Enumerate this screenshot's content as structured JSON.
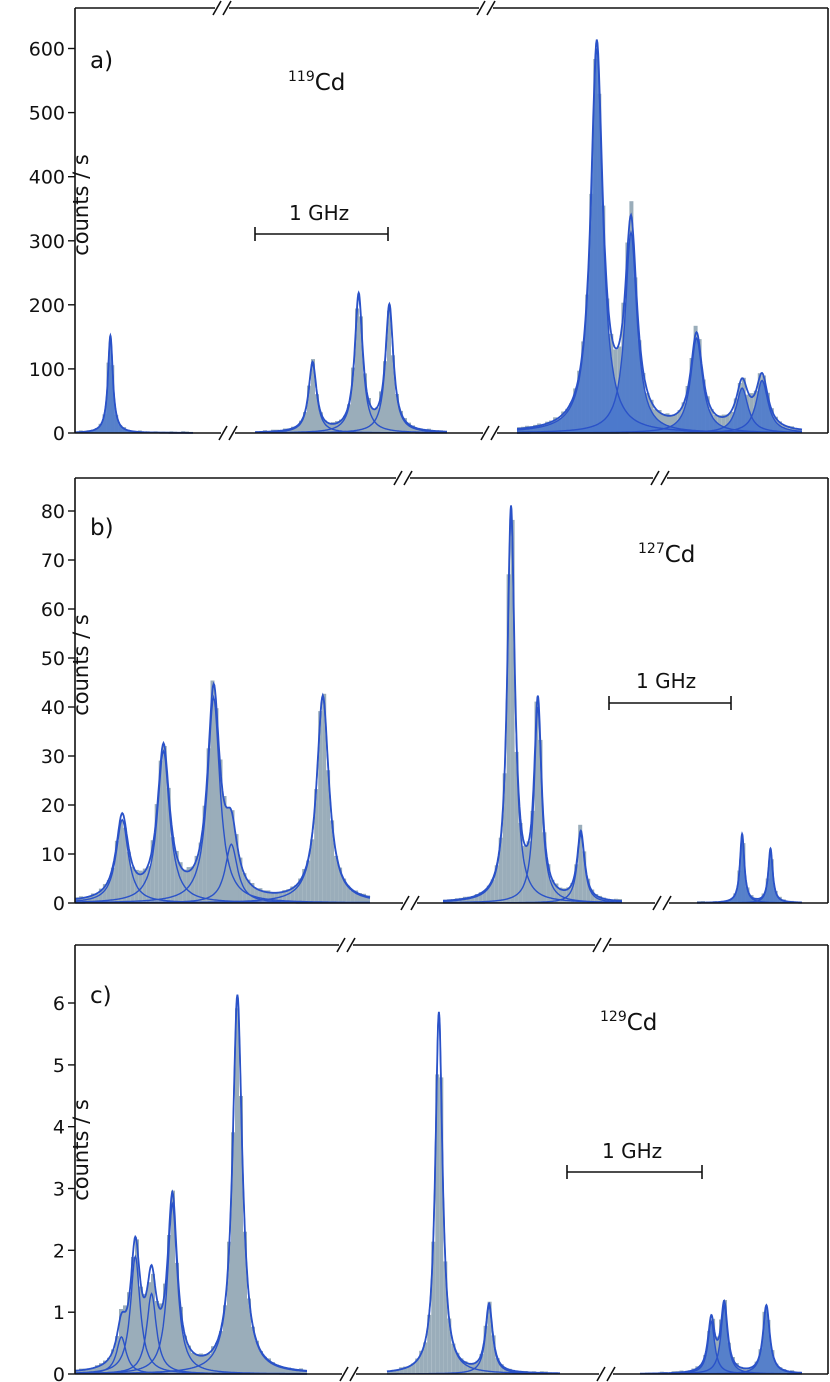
{
  "colors": {
    "fit_line": "#2a52c8",
    "fit_fill": "#4a78cc",
    "data_bar": "#8fa4b2",
    "axis": "#111111"
  },
  "chart_data": [
    {
      "type": "line",
      "panel_label": "a)",
      "isotope": {
        "mass": "119",
        "element": "Cd"
      },
      "ylabel": "counts / s",
      "ylim": [
        0,
        650
      ],
      "yticks": [
        0,
        100,
        200,
        300,
        400,
        500,
        600
      ],
      "scale_bar_label": "1 GHz",
      "axis_breaks": "top and bottom axes broken into 3 segments",
      "segments": [
        {
          "range": [
            0,
            1
          ],
          "series_fill": "blue",
          "peaks": [
            {
              "x": 0.3,
              "height": 152
            }
          ]
        },
        {
          "range": [
            0,
            1
          ],
          "series_fill": "gray",
          "peaks": [
            {
              "x": 0.3,
              "height": 108
            },
            {
              "x": 0.54,
              "height": 213
            },
            {
              "x": 0.7,
              "height": 196
            }
          ]
        },
        {
          "range": [
            0,
            1
          ],
          "series_fill": "blue",
          "peaks": [
            {
              "x": 0.28,
              "height": 600
            },
            {
              "x": 0.4,
              "height": 313
            },
            {
              "x": 0.63,
              "height": 148
            },
            {
              "x": 0.79,
              "height": 70
            },
            {
              "x": 0.86,
              "height": 82
            }
          ]
        }
      ]
    },
    {
      "type": "line",
      "panel_label": "b)",
      "isotope": {
        "mass": "127",
        "element": "Cd"
      },
      "ylabel": "counts / s",
      "ylim": [
        0,
        85
      ],
      "yticks": [
        0,
        10,
        20,
        30,
        40,
        50,
        60,
        70,
        80
      ],
      "scale_bar_label": "1 GHz",
      "axis_breaks": "top and bottom axes broken into 3 segments",
      "segments": [
        {
          "range": [
            0,
            1
          ],
          "series_fill": "gray",
          "peaks": [
            {
              "x": 0.16,
              "height": 17
            },
            {
              "x": 0.3,
              "height": 31
            },
            {
              "x": 0.47,
              "height": 42
            },
            {
              "x": 0.53,
              "height": 12
            },
            {
              "x": 0.84,
              "height": 42
            }
          ]
        },
        {
          "range": [
            0,
            1
          ],
          "series_fill": "gray",
          "peaks": [
            {
              "x": 0.38,
              "height": 80
            },
            {
              "x": 0.53,
              "height": 40
            },
            {
              "x": 0.77,
              "height": 14
            }
          ]
        },
        {
          "range": [
            0,
            1
          ],
          "series_fill": "blue",
          "peaks": [
            {
              "x": 0.43,
              "height": 14
            },
            {
              "x": 0.7,
              "height": 11
            }
          ]
        }
      ]
    },
    {
      "type": "line",
      "panel_label": "c)",
      "isotope": {
        "mass": "129",
        "element": "Cd"
      },
      "ylabel": "counts / s",
      "ylim": [
        0,
        6.8
      ],
      "yticks": [
        0,
        1,
        2,
        3,
        4,
        5,
        6
      ],
      "scale_bar_label": "1 GHz",
      "axis_breaks": "top and bottom axes broken into 3 segments",
      "segments": [
        {
          "range": [
            0,
            1
          ],
          "series_fill": "gray",
          "peaks": [
            {
              "x": 0.26,
              "height": 1.9
            },
            {
              "x": 0.33,
              "height": 1.3
            },
            {
              "x": 0.42,
              "height": 2.75
            },
            {
              "x": 0.2,
              "height": 0.6
            },
            {
              "x": 0.7,
              "height": 6.1
            }
          ]
        },
        {
          "range": [
            0,
            1
          ],
          "series_fill": "gray",
          "peaks": [
            {
              "x": 0.3,
              "height": 5.85
            },
            {
              "x": 0.59,
              "height": 1.1
            }
          ]
        },
        {
          "range": [
            0,
            1
          ],
          "series_fill": "blue",
          "peaks": [
            {
              "x": 0.44,
              "height": 0.85
            },
            {
              "x": 0.52,
              "height": 1.1
            },
            {
              "x": 0.78,
              "height": 1.1
            }
          ]
        }
      ]
    }
  ]
}
